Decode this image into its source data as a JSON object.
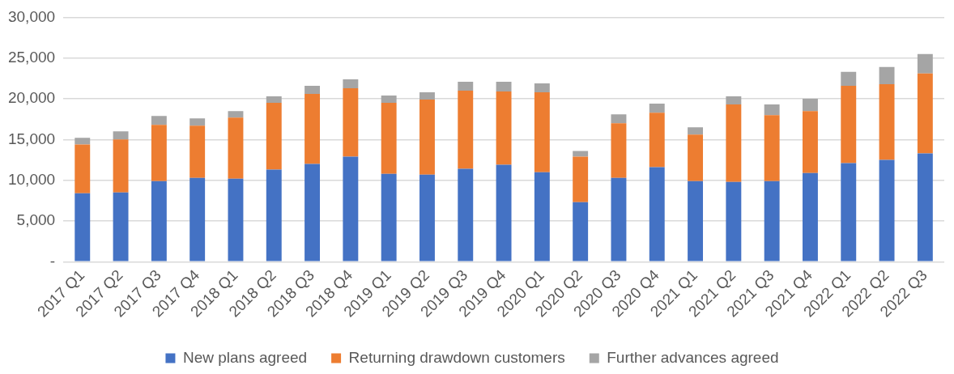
{
  "chart_data": {
    "type": "bar",
    "stacked": true,
    "categories": [
      "2017 Q1",
      "2017 Q2",
      "2017 Q3",
      "2017 Q4",
      "2018 Q1",
      "2018 Q2",
      "2018 Q3",
      "2018 Q4",
      "2019 Q1",
      "2019 Q2",
      "2019 Q3",
      "2019 Q4",
      "2020 Q1",
      "2020 Q2",
      "2020 Q3",
      "2020 Q4",
      "2021 Q1",
      "2021 Q2",
      "2021 Q3",
      "2021 Q4",
      "2022 Q1",
      "2022 Q2",
      "2022 Q3"
    ],
    "series": [
      {
        "name": "New plans agreed",
        "color": "#4472c4",
        "values": [
          8400,
          8500,
          9900,
          10300,
          10200,
          11300,
          12000,
          12900,
          10800,
          10700,
          11400,
          11900,
          11000,
          7300,
          10300,
          11600,
          9900,
          9800,
          9900,
          10900,
          12100,
          12500,
          13300
        ]
      },
      {
        "name": "Returning drawdown customers",
        "color": "#ed7d31",
        "values": [
          6000,
          6500,
          6900,
          6400,
          7500,
          8200,
          8600,
          8400,
          8700,
          9200,
          9600,
          9000,
          9800,
          5600,
          6700,
          6700,
          5700,
          9500,
          8100,
          7600,
          9500,
          9300,
          9800
        ]
      },
      {
        "name": "Further advances agreed",
        "color": "#a5a5a5",
        "values": [
          800,
          1000,
          1100,
          900,
          800,
          800,
          1000,
          1100,
          900,
          900,
          1100,
          1200,
          1100,
          700,
          1100,
          1100,
          900,
          1000,
          1300,
          1500,
          1700,
          2100,
          2400
        ]
      }
    ],
    "ylim": [
      0,
      30000
    ],
    "yticks": [
      {
        "value": 0,
        "label": "-"
      },
      {
        "value": 5000,
        "label": "5,000"
      },
      {
        "value": 10000,
        "label": "10,000"
      },
      {
        "value": 15000,
        "label": "15,000"
      },
      {
        "value": 20000,
        "label": "20,000"
      },
      {
        "value": 25000,
        "label": "25,000"
      },
      {
        "value": 30000,
        "label": "30,000"
      }
    ],
    "grid": "y",
    "legend": "bottom"
  }
}
